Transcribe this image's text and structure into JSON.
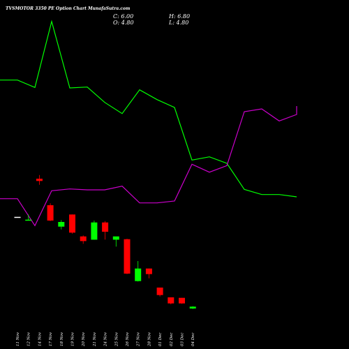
{
  "header": {
    "title": "TVSMOTOR 3350  PE Option  Chart MunafaSutra.com",
    "close_text": "C: 6.00",
    "open_text": "O: 4.80",
    "high_text": "H: 6.80",
    "low_text": "L: 4.80"
  },
  "colors": {
    "background": "#000000",
    "up": "#00ff00",
    "down": "#ff0000",
    "flat": "#ffffff",
    "green_line": "#00ff00",
    "magenta_line": "#cc00cc"
  },
  "chart_data": {
    "type": "candlestick",
    "title": "TVSMOTOR 3350  PE Option  Chart MunafaSutra.com",
    "grid": false,
    "candles": [
      {
        "date": "11 Nov",
        "open": 56.8,
        "high": 56.8,
        "low": 56.8,
        "close": 56.8
      },
      {
        "date": "12 Nov",
        "open": 55.4,
        "high": 57.8,
        "low": 55.2,
        "close": 55.6
      },
      {
        "date": "14 Nov",
        "open": 73.2,
        "high": 74.8,
        "low": 70.6,
        "close": 72.2
      },
      {
        "date": "17 Nov",
        "open": 61.8,
        "high": 62.6,
        "low": 55.0,
        "close": 55.2
      },
      {
        "date": "18 Nov",
        "open": 52.6,
        "high": 55.4,
        "low": 51.4,
        "close": 54.6
      },
      {
        "date": "19 Nov",
        "open": 57.8,
        "high": 57.8,
        "low": 49.6,
        "close": 50.0
      },
      {
        "date": "20 Nov",
        "open": 48.4,
        "high": 48.8,
        "low": 45.2,
        "close": 46.4
      },
      {
        "date": "21 Nov",
        "open": 47.0,
        "high": 55.2,
        "low": 47.0,
        "close": 54.4
      },
      {
        "date": "24 Nov",
        "open": 54.4,
        "high": 55.0,
        "low": 47.0,
        "close": 50.4
      },
      {
        "date": "25 Nov",
        "open": 47.0,
        "high": 48.2,
        "low": 44.0,
        "close": 48.4
      },
      {
        "date": "26 Nov",
        "open": 47.2,
        "high": 47.4,
        "low": 32.2,
        "close": 32.4
      },
      {
        "date": "27 Nov",
        "open": 29.2,
        "high": 37.8,
        "low": 29.0,
        "close": 34.6
      },
      {
        "date": "28 Nov",
        "open": 34.6,
        "high": 34.6,
        "low": 30.4,
        "close": 32.2
      },
      {
        "date": "01 Dec",
        "open": 26.4,
        "high": 26.4,
        "low": 22.6,
        "close": 23.2
      },
      {
        "date": "02 Dec",
        "open": 22.2,
        "high": 22.2,
        "low": 19.2,
        "close": 19.6
      },
      {
        "date": "03 Dec",
        "open": 22.0,
        "high": 22.0,
        "low": 19.4,
        "close": 19.6
      },
      {
        "date": "04 Dec",
        "open": 17.4,
        "high": 18.4,
        "low": 17.2,
        "close": 18.2
      }
    ],
    "series": [
      {
        "values": [
          115.6,
          115.6,
          112.4,
          140.8,
          112.2,
          112.6,
          106.0,
          101.2,
          111.4,
          107.2,
          103.8,
          81.2,
          82.6,
          79.8,
          68.6,
          66.4,
          66.4,
          65.4
        ]
      },
      {
        "values": [
          64.6,
          64.6,
          53.0,
          68.0,
          68.8,
          68.4,
          68.4,
          70.0,
          62.8,
          62.8,
          63.6,
          79.4,
          76.0,
          78.8,
          102.0,
          103.2,
          98.0,
          100.8,
          104.4
        ]
      }
    ],
    "ylim": [
      0,
      150
    ]
  }
}
